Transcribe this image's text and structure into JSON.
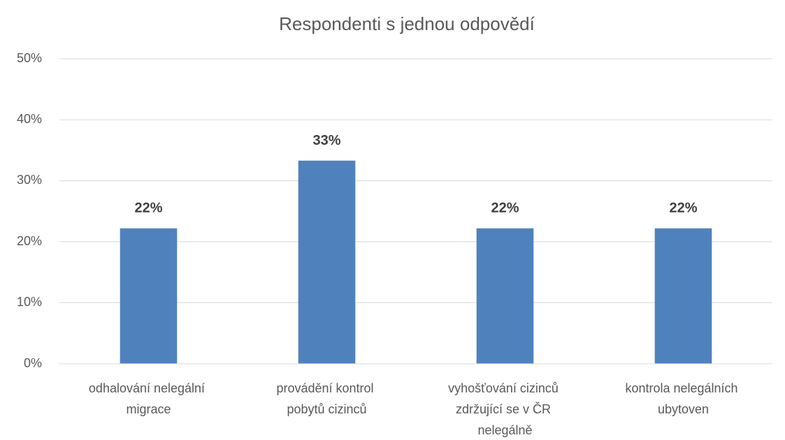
{
  "chart_data": {
    "type": "bar",
    "title": "Respondenti s jednou odpovědí",
    "categories": [
      "odhalování nelegální migrace",
      "provádění kontrol pobytů cizinců",
      "vyhošťování cizinců zdržující se v ČR nelegálně",
      "kontrola nelegálních ubytoven"
    ],
    "values": [
      22.2,
      33.3,
      22.2,
      22.2
    ],
    "value_labels": [
      "22%",
      "33%",
      "22%",
      "22%"
    ],
    "color": "#4f81bd",
    "ylim": [
      0,
      50
    ],
    "yticks": [
      {
        "value": 0,
        "label": "0%"
      },
      {
        "value": 10,
        "label": "10%"
      },
      {
        "value": 20,
        "label": "20%"
      },
      {
        "value": 30,
        "label": "30%"
      },
      {
        "value": 40,
        "label": "40%"
      },
      {
        "value": 50,
        "label": "50%"
      }
    ],
    "grid": true
  }
}
